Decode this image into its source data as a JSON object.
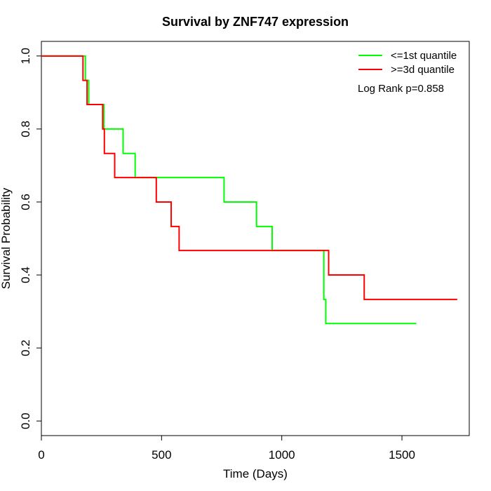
{
  "chart_data": {
    "type": "line",
    "title": "Survival by ZNF747 expression",
    "xlabel": "Time (Days)",
    "ylabel": "Survival Probability",
    "xlim": [
      0,
      1780
    ],
    "ylim": [
      -0.04,
      1.04
    ],
    "xticks": [
      0,
      500,
      1000,
      1500
    ],
    "yticks": [
      0.0,
      0.2,
      0.4,
      0.6,
      0.8,
      1.0
    ],
    "xtick_labels": [
      "0",
      "500",
      "1000",
      "1500"
    ],
    "ytick_labels": [
      "0.0",
      "0.2",
      "0.4",
      "0.6",
      "0.8",
      "1.0"
    ],
    "grid": false,
    "legend_position": "top-right",
    "annotation": "Log Rank p=0.858",
    "series": [
      {
        "name": "<=1st quantile",
        "color": "#00ff00",
        "steps": [
          [
            0,
            1.0
          ],
          [
            183,
            0.933
          ],
          [
            197,
            0.867
          ],
          [
            260,
            0.8
          ],
          [
            340,
            0.733
          ],
          [
            390,
            0.667
          ],
          [
            760,
            0.6
          ],
          [
            895,
            0.533
          ],
          [
            960,
            0.467
          ],
          [
            1175,
            0.333
          ],
          [
            1183,
            0.267
          ],
          [
            1560,
            0.267
          ]
        ]
      },
      {
        "name": ">=3d quantile",
        "color": "#ff0000",
        "steps": [
          [
            0,
            1.0
          ],
          [
            173,
            0.933
          ],
          [
            190,
            0.867
          ],
          [
            255,
            0.8
          ],
          [
            262,
            0.733
          ],
          [
            305,
            0.667
          ],
          [
            478,
            0.6
          ],
          [
            540,
            0.533
          ],
          [
            573,
            0.467
          ],
          [
            1195,
            0.4
          ],
          [
            1343,
            0.333
          ],
          [
            1730,
            0.333
          ]
        ]
      }
    ]
  }
}
